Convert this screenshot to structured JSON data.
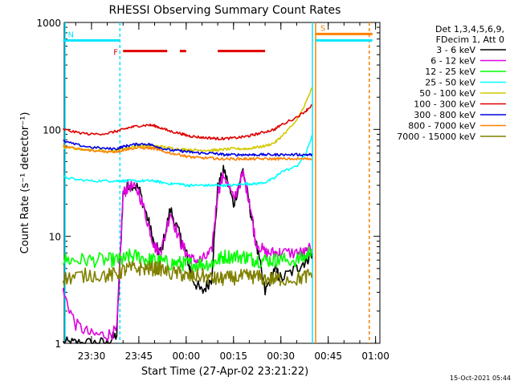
{
  "chart_data": {
    "type": "line",
    "title": "RHESSI Observing Summary Count Rates",
    "xlabel": "Start Time (27-Apr-02 23:21:22)",
    "ylabel": "Count Rate (s⁻¹ detector⁻¹)",
    "y_scale": "log",
    "ylim": [
      1,
      1000
    ],
    "y_ticks": [
      1,
      10,
      100,
      1000
    ],
    "y_tick_labels": [
      "1",
      "10",
      "100",
      "1000"
    ],
    "xlim": [
      "23:21:22",
      "01:01:22"
    ],
    "x_ticks": [
      "23:30",
      "23:45",
      "00:00",
      "00:15",
      "00:30",
      "00:45",
      "01:00"
    ],
    "footer_timestamp": "15-Oct-2021 05:44",
    "legend_header": [
      "Det 1,3,4,5,6,9,",
      "FDecim 1, Att 0"
    ],
    "legend_placement": "right-outside",
    "flags": [
      {
        "label": "N",
        "color": "#00e5ff",
        "segments": [
          [
            "23:21",
            "23:39"
          ],
          [
            "00:41",
            "00:59"
          ]
        ],
        "level": 680
      },
      {
        "label": "S",
        "color": "#ff8000",
        "segments": [
          [
            "00:41",
            "00:59"
          ]
        ],
        "level": 780
      },
      {
        "label": "F",
        "color": "#e00000",
        "segments": [
          [
            "23:40",
            "23:54"
          ],
          [
            "23:58",
            "00:00"
          ],
          [
            "00:10",
            "00:25"
          ]
        ],
        "level": 540
      }
    ],
    "vlines": [
      {
        "time": "23:39",
        "color": "#00e5ff",
        "style": "dashed"
      },
      {
        "time": "00:40",
        "color": "#00e5ff",
        "style": "solid"
      },
      {
        "time": "00:41",
        "color": "#ff8000",
        "style": "solid"
      },
      {
        "time": "00:58",
        "color": "#00e5ff",
        "style": "dashed"
      },
      {
        "time": "00:58",
        "color": "#ff8000",
        "style": "dashed"
      }
    ],
    "x": [
      "23:21",
      "23:25",
      "23:30",
      "23:35",
      "23:38",
      "23:40",
      "23:42",
      "23:45",
      "23:48",
      "23:50",
      "23:52",
      "23:55",
      "23:58",
      "24:00",
      "24:02",
      "24:05",
      "24:08",
      "24:10",
      "24:12",
      "24:15",
      "24:18",
      "24:20",
      "24:22",
      "24:25",
      "24:28",
      "24:30",
      "24:35",
      "24:38",
      "24:40"
    ],
    "series": [
      {
        "name": "3 - 6 keV",
        "color": "#000000",
        "values": [
          1,
          1,
          1,
          1,
          1.2,
          25,
          32,
          28,
          14,
          8,
          7,
          18,
          10,
          7,
          4,
          3,
          4,
          28,
          42,
          20,
          42,
          20,
          9,
          3,
          5,
          4,
          5,
          6,
          7
        ]
      },
      {
        "name": "6 - 12 keV",
        "color": "#e000e0",
        "values": [
          3,
          1.5,
          1.2,
          1.2,
          1.3,
          25,
          30,
          26,
          13,
          8,
          7,
          17,
          9,
          7,
          6,
          6,
          7,
          26,
          38,
          22,
          38,
          22,
          9,
          7,
          7,
          7,
          7,
          7,
          8
        ]
      },
      {
        "name": "12 - 25 keV",
        "color": "#00ff00",
        "values": [
          6,
          6,
          6,
          6,
          6,
          6,
          6.5,
          6.5,
          6,
          6,
          5.8,
          5.6,
          5.6,
          5.5,
          5.5,
          5.5,
          5.6,
          6,
          6.5,
          6.5,
          6.5,
          6.3,
          6,
          6,
          6,
          6,
          6,
          6.5,
          8
        ]
      },
      {
        "name": "25 - 50 keV",
        "color": "#00ffff",
        "values": [
          36,
          34,
          33,
          33,
          33,
          33,
          33,
          33,
          33,
          33,
          32,
          31,
          31,
          30,
          30,
          30,
          30,
          30,
          30,
          30,
          31,
          31,
          31,
          32,
          35,
          40,
          45,
          60,
          90
        ]
      },
      {
        "name": "50 - 100 keV",
        "color": "#d4c800",
        "values": [
          68,
          66,
          64,
          63,
          63,
          66,
          68,
          70,
          70,
          70,
          69,
          67,
          65,
          65,
          64,
          64,
          64,
          64,
          65,
          66,
          66,
          66,
          68,
          70,
          75,
          85,
          120,
          180,
          250
        ]
      },
      {
        "name": "100 - 300 keV",
        "color": "#e00000",
        "values": [
          100,
          94,
          90,
          92,
          96,
          100,
          104,
          108,
          110,
          108,
          103,
          96,
          92,
          88,
          86,
          84,
          83,
          82,
          82,
          83,
          85,
          87,
          90,
          95,
          100,
          110,
          130,
          150,
          170
        ]
      },
      {
        "name": "300 - 800 keV",
        "color": "#0000e0",
        "values": [
          78,
          72,
          68,
          66,
          66,
          69,
          71,
          73,
          73,
          70,
          67,
          64,
          63,
          62,
          61,
          60,
          60,
          59,
          58,
          58,
          58,
          58,
          58,
          58,
          58,
          58,
          58,
          58,
          58
        ]
      },
      {
        "name": "800 - 7000 keV",
        "color": "#ff8000",
        "values": [
          70,
          66,
          63,
          62,
          62,
          64,
          66,
          67,
          67,
          66,
          63,
          60,
          58,
          56,
          55,
          54,
          54,
          53,
          53,
          53,
          53,
          53,
          53,
          53,
          53,
          53,
          53,
          53,
          53
        ]
      },
      {
        "name": "7000 - 15000 keV",
        "color": "#808000",
        "values": [
          4,
          4.2,
          4.4,
          4.3,
          4.4,
          4.8,
          5,
          5,
          5,
          5,
          5,
          4.5,
          4.5,
          4.2,
          4.2,
          4.3,
          4,
          4,
          4,
          4.1,
          4.2,
          4.2,
          4.2,
          4,
          4,
          4,
          4,
          4.2,
          4.6
        ]
      }
    ]
  }
}
